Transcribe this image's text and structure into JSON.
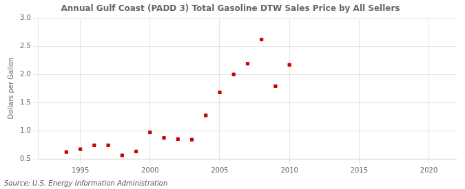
{
  "chart_data": {
    "type": "scatter",
    "title": "Annual Gulf Coast (PADD 3) Total Gasoline DTW Sales Price by All Sellers",
    "y_label": "Dollars per Gallon",
    "annotation": "Source: U.S. Energy Information Administration",
    "x": [
      1994,
      1995,
      1996,
      1997,
      1998,
      1999,
      2000,
      2001,
      2002,
      2003,
      2004,
      2005,
      2006,
      2007,
      2008,
      2009,
      2010
    ],
    "values": [
      0.62,
      0.67,
      0.74,
      0.74,
      0.56,
      0.63,
      0.97,
      0.87,
      0.85,
      0.84,
      1.27,
      1.68,
      2.0,
      2.19,
      2.62,
      1.79,
      2.17
    ],
    "color": "#cc0000",
    "marker": "square",
    "xlim": [
      1992,
      2022
    ],
    "xticks": [
      1995,
      2000,
      2005,
      2010,
      2015,
      2020
    ],
    "ylim": [
      0.5,
      3.0
    ],
    "yticks": [
      0.5,
      {
        "value": 1.0,
        "label": "1.0"
      },
      1.5,
      {
        "value": 2.0,
        "label": "2.0"
      },
      2.5,
      {
        "value": 3.0,
        "label": "3.0"
      }
    ],
    "grid": true
  }
}
